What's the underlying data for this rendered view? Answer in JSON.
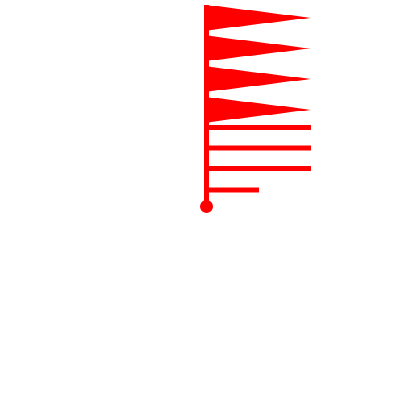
{
  "symbol": {
    "kind": "wind-barb",
    "pennants": 4,
    "full_barbs": 3,
    "half_barbs": 1,
    "station_marker": "filled-circle",
    "color": "#ff0000"
  }
}
